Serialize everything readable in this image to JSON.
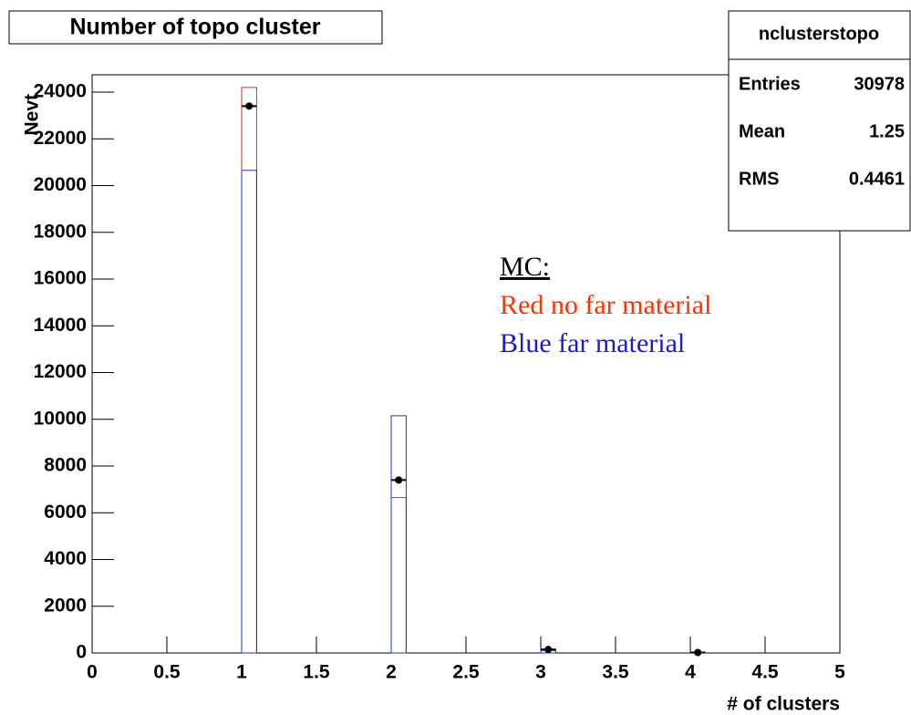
{
  "chart_data": {
    "type": "histogram",
    "title": "Number of topo cluster",
    "x_label": "# of clusters",
    "y_label": "Nevt",
    "xlim": [
      0,
      5
    ],
    "ylim": [
      0,
      24740
    ],
    "xticks": [
      0,
      0.5,
      1,
      1.5,
      2,
      2.5,
      3,
      3.5,
      4,
      4.5,
      5
    ],
    "yticks": [
      0,
      2000,
      4000,
      6000,
      8000,
      10000,
      12000,
      14000,
      16000,
      18000,
      20000,
      22000,
      24000
    ],
    "bins": [
      0,
      0.1,
      0.2,
      0.3,
      0.4,
      0.5,
      0.6,
      0.7,
      0.8,
      0.9,
      1,
      1.1,
      1.2,
      1.3,
      1.4,
      1.5,
      1.6,
      1.7,
      1.8,
      1.9,
      2,
      2.1,
      2.2,
      2.3,
      2.4,
      2.5,
      2.6,
      2.7,
      2.8,
      2.9,
      3,
      3.1,
      3.2,
      3.3,
      3.4,
      3.5,
      3.6,
      3.7,
      3.8,
      3.9,
      4,
      4.1,
      4.2,
      4.3,
      4.4,
      4.5,
      4.6,
      4.7,
      4.8,
      4.9,
      5
    ],
    "series": [
      {
        "color": "#e8261c",
        "values": [
          0,
          0,
          0,
          0,
          0,
          0,
          0,
          0,
          0,
          0,
          24200,
          0,
          0,
          0,
          0,
          0,
          0,
          0,
          0,
          0,
          6650,
          0,
          0,
          0,
          0,
          0,
          0,
          0,
          0,
          0,
          100,
          0,
          0,
          0,
          0,
          0,
          0,
          0,
          0,
          0,
          10,
          0,
          0,
          0,
          0,
          0,
          0,
          0,
          0,
          0
        ]
      },
      {
        "color": "#1c2ee8",
        "values": [
          0,
          0,
          0,
          0,
          0,
          0,
          0,
          0,
          0,
          0,
          20650,
          0,
          0,
          0,
          0,
          0,
          0,
          0,
          0,
          0,
          10150,
          0,
          0,
          0,
          0,
          0,
          0,
          0,
          0,
          0,
          150,
          0,
          0,
          0,
          0,
          0,
          0,
          0,
          0,
          0,
          20,
          0,
          0,
          0,
          0,
          0,
          0,
          0,
          0,
          0
        ]
      }
    ],
    "points": {
      "color": "#000000",
      "x": [
        1.05,
        2.05,
        3.05,
        4.05
      ],
      "values": [
        23400,
        7400,
        150,
        20
      ]
    },
    "annotations": [
      {
        "text": "MC:",
        "color": "#000000"
      },
      {
        "text": "Red no far material",
        "color": "#ff3300"
      },
      {
        "text": "Blue far material",
        "color": "#1a1ad0"
      }
    ],
    "stats": {
      "title": "nclusterstopo",
      "rows": [
        {
          "label": "Entries",
          "value": 30978
        },
        {
          "label": "Mean",
          "value": 1.25
        },
        {
          "label": "RMS",
          "value": 0.4461
        }
      ]
    }
  }
}
